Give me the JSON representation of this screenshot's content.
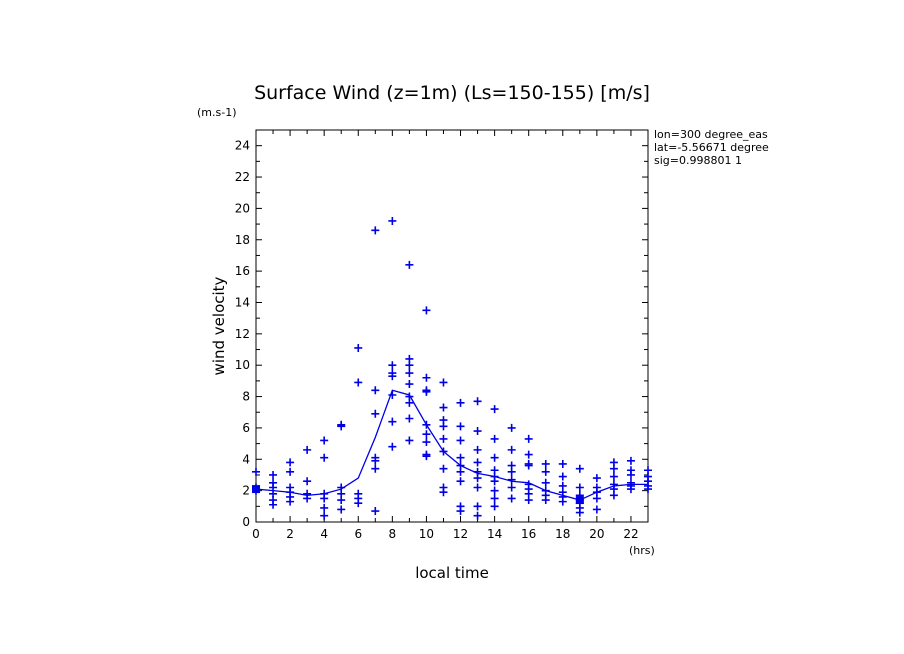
{
  "chart_data": {
    "type": "scatter",
    "title": "Surface Wind (z=1m) (Ls=150-155) [m/s]",
    "y_unit_label": "(m.s-1)",
    "x_unit_label": "(hrs)",
    "xlabel": "local time",
    "ylabel": "wind velocity",
    "info_lines": [
      "lon=300 degree_eas",
      "lat=-5.56671 degree",
      "sig=0.998801 1"
    ],
    "xlim": [
      0,
      23
    ],
    "ylim": [
      0,
      25
    ],
    "x_ticks": [
      0,
      2,
      4,
      6,
      8,
      10,
      12,
      14,
      16,
      18,
      20,
      22
    ],
    "y_ticks": [
      0,
      2,
      4,
      6,
      8,
      10,
      12,
      14,
      16,
      18,
      20,
      22,
      24
    ],
    "marker_color": "#0000e6",
    "series": [
      {
        "kind": "points",
        "points": [
          [
            0,
            3.2
          ],
          [
            0,
            2.2
          ],
          [
            0,
            2.0
          ],
          [
            1,
            3.0
          ],
          [
            1,
            2.5
          ],
          [
            1,
            2.2
          ],
          [
            1,
            1.8
          ],
          [
            1,
            1.4
          ],
          [
            1,
            1.1
          ],
          [
            2,
            3.8
          ],
          [
            2,
            3.2
          ],
          [
            2,
            2.2
          ],
          [
            2,
            1.9
          ],
          [
            2,
            1.6
          ],
          [
            2,
            1.3
          ],
          [
            3,
            4.6
          ],
          [
            3,
            2.6
          ],
          [
            3,
            1.8
          ],
          [
            3,
            1.5
          ],
          [
            4,
            5.2
          ],
          [
            4,
            4.1
          ],
          [
            4,
            1.8
          ],
          [
            4,
            1.5
          ],
          [
            4,
            0.9
          ],
          [
            4,
            0.4
          ],
          [
            5,
            6.2
          ],
          [
            5,
            6.1
          ],
          [
            5,
            2.2
          ],
          [
            5,
            1.8
          ],
          [
            5,
            1.4
          ],
          [
            5,
            0.8
          ],
          [
            6,
            11.1
          ],
          [
            6,
            8.9
          ],
          [
            6,
            1.8
          ],
          [
            6,
            1.5
          ],
          [
            6,
            1.2
          ],
          [
            7,
            18.6
          ],
          [
            7,
            8.4
          ],
          [
            7,
            6.9
          ],
          [
            7,
            4.1
          ],
          [
            7,
            3.9
          ],
          [
            7,
            3.4
          ],
          [
            7,
            0.7
          ],
          [
            8,
            19.2
          ],
          [
            8,
            10.0
          ],
          [
            8,
            9.5
          ],
          [
            8,
            9.3
          ],
          [
            8,
            8.1
          ],
          [
            8,
            6.4
          ],
          [
            8,
            4.8
          ],
          [
            9,
            16.4
          ],
          [
            9,
            10.4
          ],
          [
            9,
            10.0
          ],
          [
            9,
            9.5
          ],
          [
            9,
            8.8
          ],
          [
            9,
            8.0
          ],
          [
            9,
            7.6
          ],
          [
            9,
            6.6
          ],
          [
            9,
            5.2
          ],
          [
            10,
            13.5
          ],
          [
            10,
            9.2
          ],
          [
            10,
            8.4
          ],
          [
            10,
            8.3
          ],
          [
            10,
            6.2
          ],
          [
            10,
            5.6
          ],
          [
            10,
            5.1
          ],
          [
            10,
            4.3
          ],
          [
            10,
            4.2
          ],
          [
            11,
            8.9
          ],
          [
            11,
            7.3
          ],
          [
            11,
            6.5
          ],
          [
            11,
            6.1
          ],
          [
            11,
            5.3
          ],
          [
            11,
            4.5
          ],
          [
            11,
            3.4
          ],
          [
            11,
            2.2
          ],
          [
            11,
            1.9
          ],
          [
            12,
            7.6
          ],
          [
            12,
            6.1
          ],
          [
            12,
            5.2
          ],
          [
            12,
            4.1
          ],
          [
            12,
            3.6
          ],
          [
            12,
            3.2
          ],
          [
            12,
            2.6
          ],
          [
            12,
            1.0
          ],
          [
            12,
            0.7
          ],
          [
            13,
            7.7
          ],
          [
            13,
            5.8
          ],
          [
            13,
            4.6
          ],
          [
            13,
            3.8
          ],
          [
            13,
            3.2
          ],
          [
            13,
            2.8
          ],
          [
            13,
            2.2
          ],
          [
            13,
            1.0
          ],
          [
            13,
            0.4
          ],
          [
            14,
            7.2
          ],
          [
            14,
            5.3
          ],
          [
            14,
            4.1
          ],
          [
            14,
            3.3
          ],
          [
            14,
            2.9
          ],
          [
            14,
            2.6
          ],
          [
            14,
            2.0
          ],
          [
            14,
            1.5
          ],
          [
            14,
            1.0
          ],
          [
            15,
            6.0
          ],
          [
            15,
            4.6
          ],
          [
            15,
            3.6
          ],
          [
            15,
            3.2
          ],
          [
            15,
            2.7
          ],
          [
            15,
            2.2
          ],
          [
            15,
            1.5
          ],
          [
            16,
            5.3
          ],
          [
            16,
            4.3
          ],
          [
            16,
            3.7
          ],
          [
            16,
            3.6
          ],
          [
            16,
            2.4
          ],
          [
            16,
            2.1
          ],
          [
            16,
            1.8
          ],
          [
            16,
            1.4
          ],
          [
            17,
            3.7
          ],
          [
            17,
            3.2
          ],
          [
            17,
            2.5
          ],
          [
            17,
            2.0
          ],
          [
            17,
            1.7
          ],
          [
            17,
            1.4
          ],
          [
            18,
            3.7
          ],
          [
            18,
            2.9
          ],
          [
            18,
            2.3
          ],
          [
            18,
            1.9
          ],
          [
            18,
            1.6
          ],
          [
            18,
            1.3
          ],
          [
            19,
            3.4
          ],
          [
            19,
            2.2
          ],
          [
            19,
            1.7
          ],
          [
            19,
            1.4
          ],
          [
            19,
            1.2
          ],
          [
            19,
            0.9
          ],
          [
            19,
            0.6
          ],
          [
            20,
            2.8
          ],
          [
            20,
            2.2
          ],
          [
            20,
            1.9
          ],
          [
            20,
            1.5
          ],
          [
            20,
            0.8
          ],
          [
            21,
            3.8
          ],
          [
            21,
            3.4
          ],
          [
            21,
            2.9
          ],
          [
            21,
            2.4
          ],
          [
            21,
            2.1
          ],
          [
            21,
            1.7
          ],
          [
            22,
            3.9
          ],
          [
            22,
            3.3
          ],
          [
            22,
            3.0
          ],
          [
            22,
            2.5
          ],
          [
            22,
            2.3
          ],
          [
            22,
            2.1
          ],
          [
            23,
            3.3
          ],
          [
            23,
            2.9
          ],
          [
            23,
            2.6
          ],
          [
            23,
            2.3
          ],
          [
            23,
            2.1
          ]
        ]
      },
      {
        "kind": "line",
        "x": [
          0,
          1,
          2,
          3,
          4,
          5,
          6,
          7,
          8,
          9,
          10,
          11,
          12,
          13,
          14,
          15,
          16,
          17,
          18,
          19,
          20,
          21,
          22,
          23
        ],
        "y": [
          2.1,
          2.0,
          1.9,
          1.7,
          1.8,
          2.1,
          2.8,
          5.4,
          8.4,
          8.1,
          6.2,
          4.5,
          3.6,
          3.1,
          2.9,
          2.6,
          2.5,
          2.0,
          1.7,
          1.4,
          1.9,
          2.3,
          2.4,
          2.4
        ]
      }
    ]
  }
}
